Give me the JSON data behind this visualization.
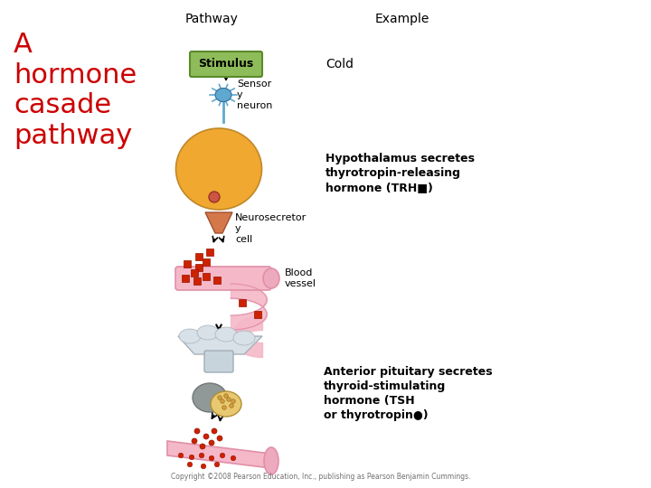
{
  "title_left": "A\nhormone\ncasade\npathway",
  "title_left_color": "#CC0000",
  "header_pathway": "Pathway",
  "header_example": "Example",
  "stimulus_text": "Stimulus",
  "stimulus_box_facecolor": "#8FBC5A",
  "stimulus_box_edgecolor": "#5A8A2A",
  "cold_text": "Cold",
  "sensory_neuron_label": "Sensor\ny\nneuron",
  "neurosecretory_label": "Neurosecretor\ny\ncell",
  "blood_vessel_label": "Blood\nvessel",
  "hypo_text": "Hypothalamus secretes\nthyrotropin-releasing\nhormone (TRH■)",
  "anterior_text": "Anterior pituitary secretes\nthyroid-stimulating\nhormone (TSH\nor thyrotropin●)",
  "copyright": "Copyright ©2008 Pearson Education, Inc., publishing as Pearson Benjamin Cummings.",
  "bg_color": "#FFFFFF",
  "trh_square_color": "#CC2200",
  "tsh_circle_color": "#CC2200",
  "hypothalamus_color": "#F0A830",
  "pituitary_color": "#E8C870",
  "blood_vessel_pink": "#F5B8C8",
  "blood_vessel_dark": "#E090A8",
  "neuron_blue": "#60A8D0",
  "neurosecretory_color": "#D4784A",
  "portal_gray": "#C8D4DC",
  "pit_gray": "#909898"
}
